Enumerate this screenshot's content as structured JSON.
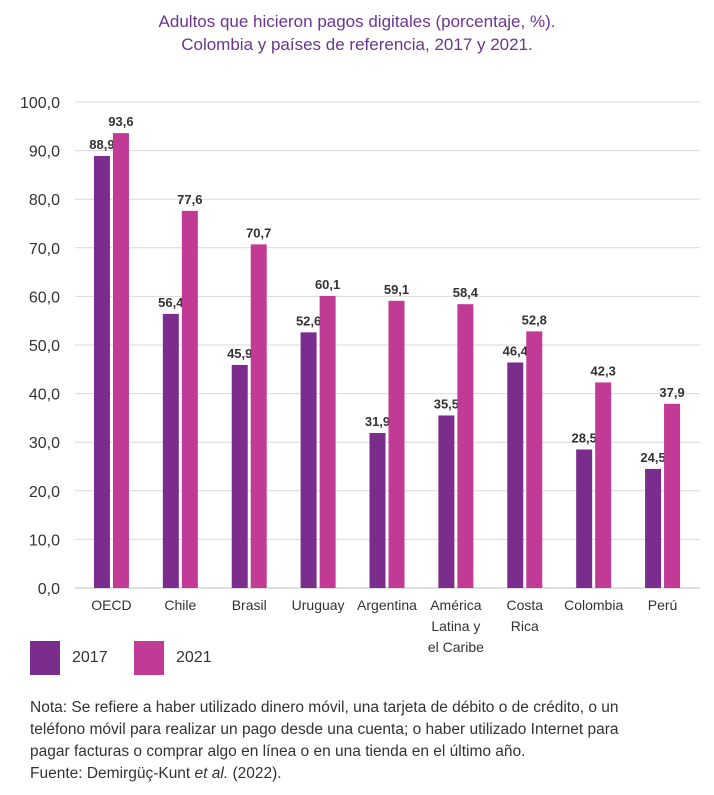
{
  "title": {
    "line1": "Adultos que hicieron pagos digitales (porcentaje, %).",
    "line2": "Colombia y países de referencia, 2017 y 2021."
  },
  "legend": {
    "s2017": "2017",
    "s2021": "2021"
  },
  "note": {
    "line1": "Nota: Se refiere a haber utilizado dinero móvil, una tarjeta de débito o de crédito, o un",
    "line2": "teléfono móvil para realizar un pago desde una cuenta; o haber utilizado Internet para",
    "line3": "pagar facturas o comprar algo en línea o en una tienda en el último año.",
    "source_prefix": "Fuente: Demirgüç-Kunt ",
    "source_italic": "et al.",
    "source_suffix": " (2022)."
  },
  "colors": {
    "s2017": "#7b2d8e",
    "s2021": "#c03a96",
    "title": "#6b3591",
    "grid": "#d9d9d9"
  },
  "chart_data": {
    "type": "bar",
    "title": "Adultos que hicieron pagos digitales (porcentaje, %). Colombia y países de referencia, 2017 y 2021.",
    "categories": [
      [
        "OECD"
      ],
      [
        "Chile"
      ],
      [
        "Brasil"
      ],
      [
        "Uruguay"
      ],
      [
        "Argentina"
      ],
      [
        "América",
        "Latina y",
        "el Caribe"
      ],
      [
        "Costa",
        "Rica"
      ],
      [
        "Colombia"
      ],
      [
        "Perú"
      ]
    ],
    "series": [
      {
        "name": "2017",
        "values": [
          88.9,
          56.4,
          45.9,
          52.6,
          31.9,
          35.5,
          46.4,
          28.5,
          24.5
        ],
        "labels": [
          "88,9",
          "56,4",
          "45,9",
          "52,6",
          "31,9",
          "35,5",
          "46,4",
          "28,5",
          "24,5"
        ]
      },
      {
        "name": "2021",
        "values": [
          93.6,
          77.6,
          70.7,
          60.1,
          59.1,
          58.4,
          52.8,
          42.3,
          37.9
        ],
        "labels": [
          "93,6",
          "77,6",
          "70,7",
          "60,1",
          "59,1",
          "58,4",
          "52,8",
          "42,3",
          "37,9"
        ]
      }
    ],
    "yticks": [
      "0,0",
      "10,0",
      "20,0",
      "30,0",
      "40,0",
      "50,0",
      "60,0",
      "70,0",
      "80,0",
      "90,0",
      "100,0"
    ],
    "ylim": [
      0,
      100
    ],
    "grid": true,
    "legend_position": "bottom-left"
  }
}
